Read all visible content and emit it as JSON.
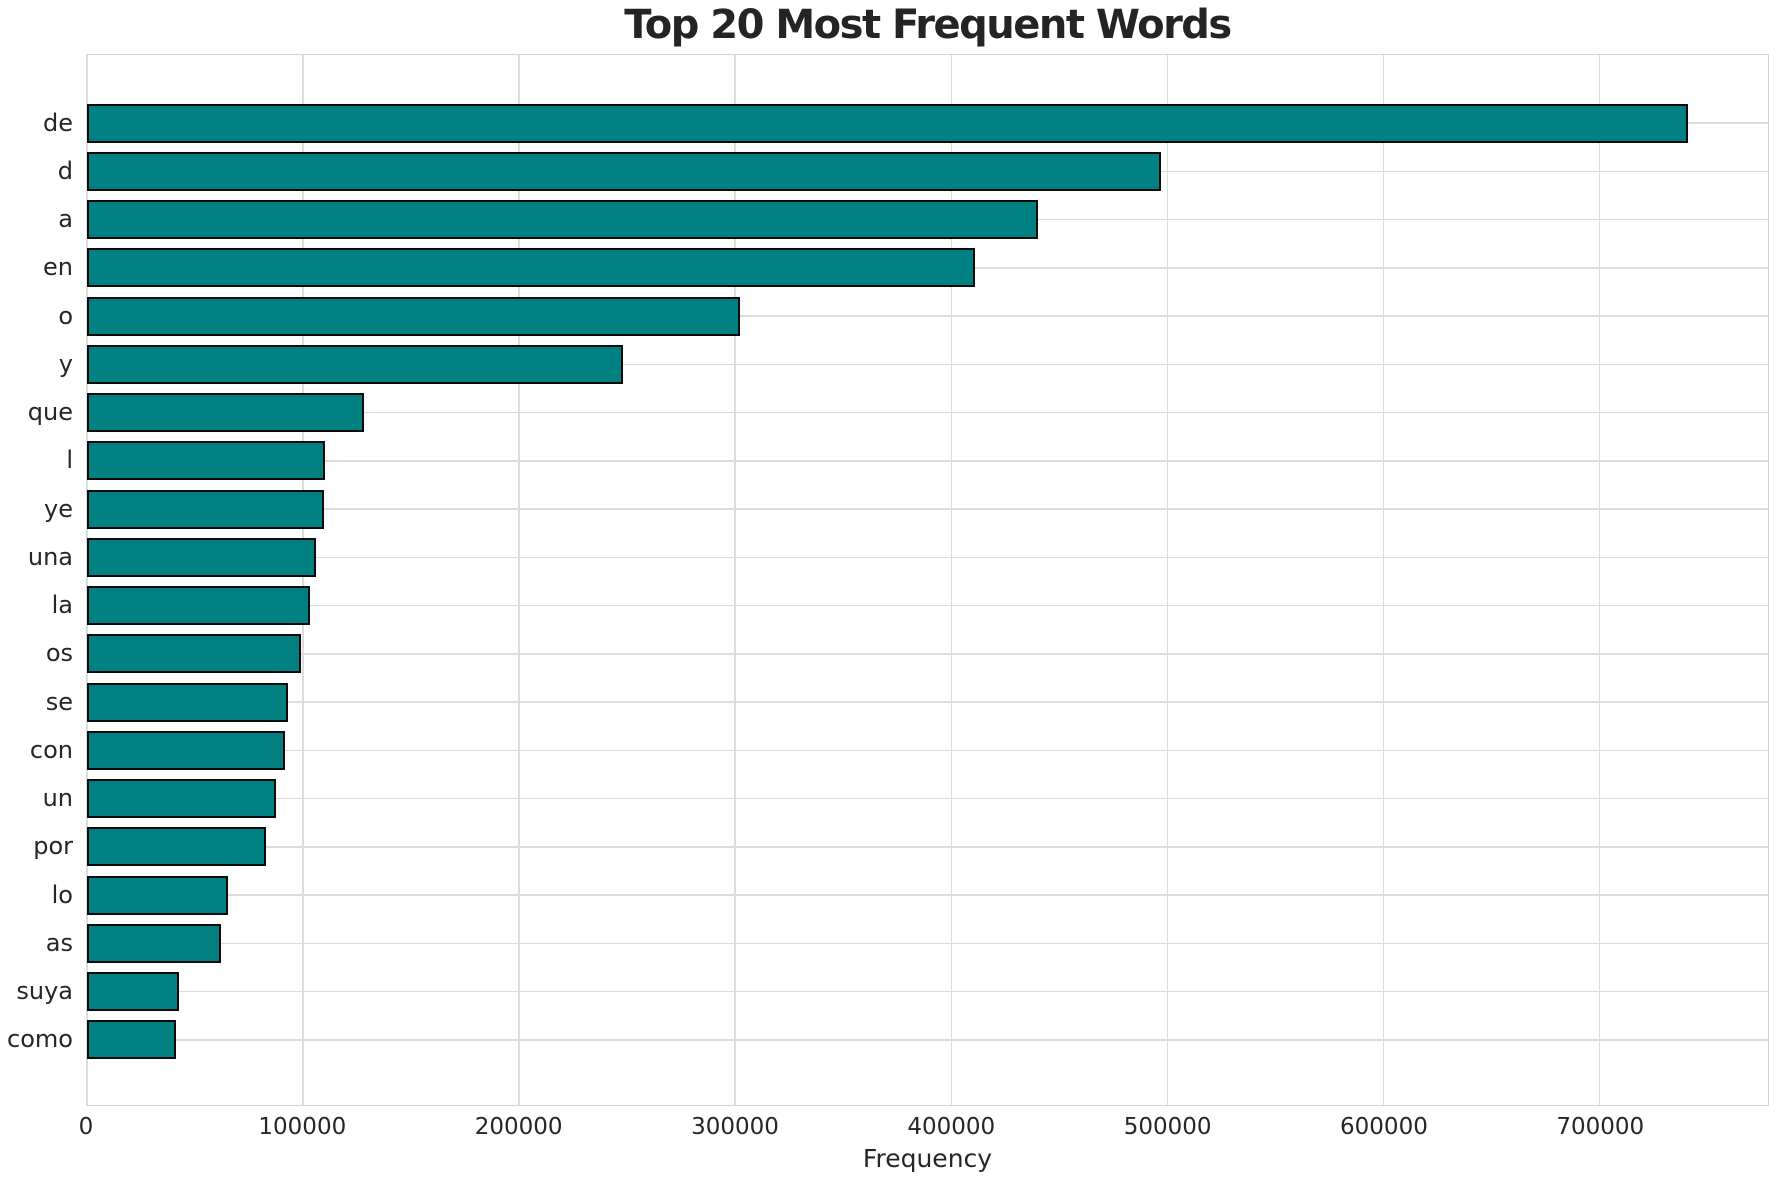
{
  "chart_data": {
    "type": "bar",
    "orientation": "horizontal",
    "title": "Top 20 Most Frequent Words",
    "xlabel": "Frequency",
    "ylabel": "",
    "categories": [
      "de",
      "d",
      "a",
      "en",
      "o",
      "y",
      "que",
      "l",
      "ye",
      "una",
      "la",
      "os",
      "se",
      "con",
      "un",
      "por",
      "lo",
      "as",
      "suya",
      "como"
    ],
    "values": [
      741000,
      497000,
      440000,
      411000,
      302000,
      248000,
      128000,
      110000,
      109800,
      106000,
      103000,
      99000,
      93200,
      91700,
      87500,
      83000,
      65400,
      62000,
      42500,
      41000
    ],
    "x_ticks": [
      0,
      100000,
      200000,
      300000,
      400000,
      500000,
      600000,
      700000
    ],
    "xlim": [
      0,
      778000
    ],
    "grid": "on",
    "legend": "none",
    "colors": {
      "bar_fill": "#008080",
      "bar_edge": "#0a0a0a",
      "grid": "#dcdcdc",
      "spine": "#d4d4d4",
      "text": "#262626",
      "background": "#ffffff"
    }
  }
}
